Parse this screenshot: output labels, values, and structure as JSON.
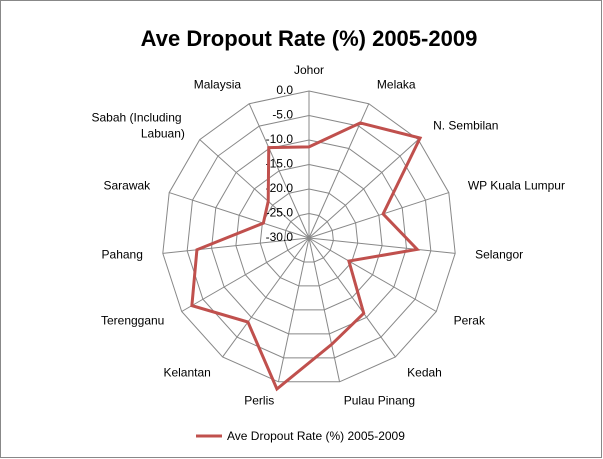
{
  "chart_data": {
    "type": "radar",
    "title": "Ave Dropout Rate (%) 2005-2009",
    "categories": [
      "Johor",
      "Melaka",
      "N. Sembilan",
      "WP Kuala Lumpur",
      "Selangor",
      "Perak",
      "Kedah",
      "Pulau Pinang",
      "Perlis",
      "Kelantan",
      "Terengganu",
      "Pahang",
      "Sarawak",
      "Sabah (Including Labuan)",
      "Malaysia"
    ],
    "series": [
      {
        "name": "Ave Dropout Rate (%) 2005-2009",
        "color": "#c0504d",
        "values": [
          -11.4,
          -4.3,
          0.5,
          -14.1,
          -7.8,
          -20.6,
          -11.0,
          -7.8,
          1.5,
          -8.8,
          -2.4,
          -7.0,
          -20.2,
          -18.8,
          -9.8
        ]
      }
    ],
    "rlim": [
      -30,
      0
    ],
    "rticks": [
      {
        "value": 0,
        "label": "0.0"
      },
      {
        "value": -5,
        "label": "-5.0"
      },
      {
        "value": -10,
        "label": "-10.0"
      },
      {
        "value": -15,
        "label": "-15.0"
      },
      {
        "value": -20,
        "label": "-20.0"
      },
      {
        "value": -25,
        "label": "-25.0"
      },
      {
        "value": -30,
        "label": "-30.0"
      }
    ],
    "grid": true,
    "legend": "bottom"
  }
}
